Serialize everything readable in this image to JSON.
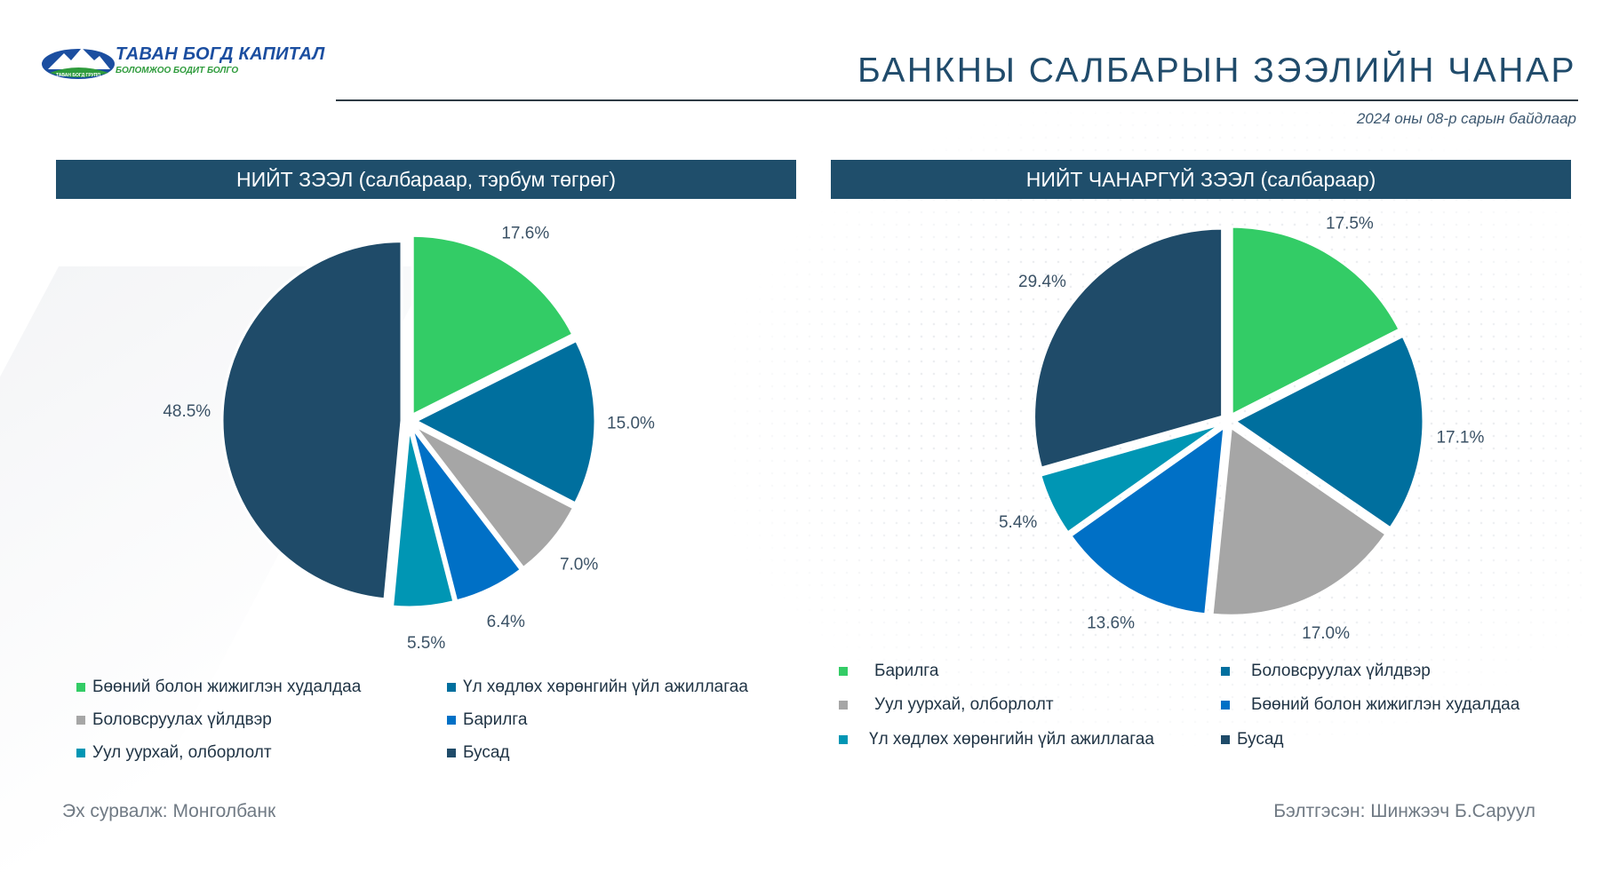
{
  "logo": {
    "name": "ТАВАН БОГД КАПИТАЛ",
    "tagline": "БОЛОМЖОО БОДИТ БОЛГО",
    "badge": "ТАВАН БОГД ГРУПП"
  },
  "page_title": "БАНКНЫ САЛБАРЫН ЗЭЭЛИЙН ЧАНАР",
  "date_note": "2024 оны 08-р сарын байдлаар",
  "footer": {
    "source": "Эх сурвалж: Монголбанк",
    "prepared_by": "Бэлтгэсэн: Шинжээч Б.Саруул"
  },
  "colors": {
    "green": "#33cc66",
    "teal_dark": "#006f9e",
    "gray": "#a6a6a6",
    "blue": "#0070c6",
    "teal": "#0096b4",
    "navy": "#1f4b69",
    "header_bg": "#1f4e6b"
  },
  "chart_data": [
    {
      "type": "pie",
      "title": "НИЙТ ЗЭЭЛ (салбараар, тэрбум төгрөг)",
      "slices": [
        {
          "label": "Бөөний болон жижиглэн худалдаа",
          "value": 17.6,
          "value_label": "17.6%",
          "color": "#33cc66"
        },
        {
          "label": "Үл хөдлөх хөрөнгийн үйл ажиллагаа",
          "value": 15.0,
          "value_label": "15.0%",
          "color": "#006f9e"
        },
        {
          "label": "Боловсруулах үйлдвэр",
          "value": 7.0,
          "value_label": "7.0%",
          "color": "#a6a6a6"
        },
        {
          "label": "Барилга",
          "value": 6.4,
          "value_label": "6.4%",
          "color": "#0070c6"
        },
        {
          "label": "Уул уурхай, олборлолт",
          "value": 5.5,
          "value_label": "5.5%",
          "color": "#0096b4"
        },
        {
          "label": "Бусад",
          "value": 48.5,
          "value_label": "48.5%",
          "color": "#1f4b69"
        }
      ],
      "legend": [
        "Бөөний болон жижиглэн худалдаа",
        "Үл хөдлөх хөрөнгийн үйл ажиллагаа",
        "Боловсруулах үйлдвэр",
        "Барилга",
        "Уул уурхай, олборлолт",
        "Бусад"
      ]
    },
    {
      "type": "pie",
      "title": "НИЙТ ЧАНАРГҮЙ ЗЭЭЛ (салбараар)",
      "slices": [
        {
          "label": "Барилга",
          "value": 17.5,
          "value_label": "17.5%",
          "color": "#33cc66"
        },
        {
          "label": "Боловсруулах үйлдвэр",
          "value": 17.1,
          "value_label": "17.1%",
          "color": "#006f9e"
        },
        {
          "label": "Уул уурхай, олборлолт",
          "value": 17.0,
          "value_label": "17.0%",
          "color": "#a6a6a6"
        },
        {
          "label": "Бөөний болон жижиглэн худалдаа",
          "value": 13.6,
          "value_label": "13.6%",
          "color": "#0070c6"
        },
        {
          "label": "Үл хөдлөх хөрөнгийн үйл ажиллагаа",
          "value": 5.4,
          "value_label": "5.4%",
          "color": "#0096b4"
        },
        {
          "label": "Бусад",
          "value": 29.4,
          "value_label": "29.4%",
          "color": "#1f4b69"
        }
      ],
      "legend": [
        "Барилга",
        "Боловсруулах үйлдвэр",
        "Уул уурхай, олборлолт",
        "Бөөний болон жижиглэн худалдаа",
        "Үл хөдлөх хөрөнгийн үйл ажиллагаа",
        "Бусад"
      ]
    }
  ]
}
